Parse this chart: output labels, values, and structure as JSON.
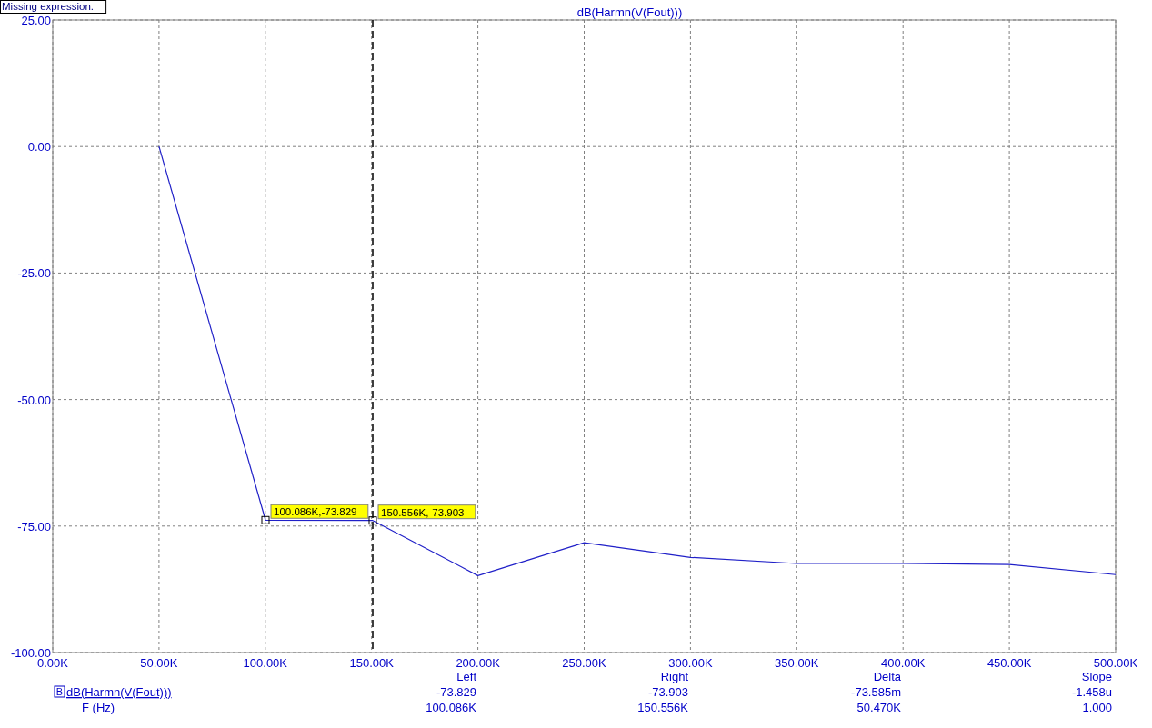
{
  "chart_data": {
    "type": "line",
    "title": "dB(Harmn(V(Fout)))",
    "x": [
      50000,
      100086,
      150556,
      200000,
      250000,
      300000,
      350000,
      400000,
      450000,
      500000
    ],
    "series": [
      {
        "color": "#2020c8",
        "values": [
          0,
          -73.829,
          -73.903,
          -84.8,
          -78.3,
          -81.2,
          -82.4,
          -82.4,
          -82.6,
          -84.6
        ]
      }
    ],
    "xlim": [
      0,
      500000
    ],
    "xticks": [
      {
        "value": 0,
        "label": "0.00K"
      },
      {
        "value": 50000,
        "label": "50.00K"
      },
      {
        "value": 100000,
        "label": "100.00K"
      },
      {
        "value": 150000,
        "label": "150.00K"
      },
      {
        "value": 200000,
        "label": "200.00K"
      },
      {
        "value": 250000,
        "label": "250.00K"
      },
      {
        "value": 300000,
        "label": "300.00K"
      },
      {
        "value": 350000,
        "label": "350.00K"
      },
      {
        "value": 400000,
        "label": "400.00K"
      },
      {
        "value": 450000,
        "label": "450.00K"
      },
      {
        "value": 500000,
        "label": "500.00K"
      }
    ],
    "ylim": [
      -100,
      25
    ],
    "yticks": [
      {
        "value": -100,
        "label": "-100.00"
      },
      {
        "value": -75,
        "label": "-75.00"
      },
      {
        "value": -50,
        "label": "-50.00"
      },
      {
        "value": -25,
        "label": "-25.00"
      },
      {
        "value": 0,
        "label": "0.00"
      },
      {
        "value": 25,
        "label": "25.00"
      }
    ],
    "grid": true,
    "ref_lines": [
      {
        "axis": "x",
        "value": 150556,
        "color": "#000000",
        "line_style": "dashed"
      }
    ],
    "annotations": [
      {
        "text": "100.086K,-73.829",
        "x": 100086,
        "y": -73.829
      },
      {
        "text": "150.556K,-73.903",
        "x": 150556,
        "y": -73.903
      },
      "Missing expression.",
      "Left",
      "Right",
      "Delta",
      "Slope",
      "B",
      "dB(Harmn(V(Fout)))",
      "-73.829",
      "-73.903",
      "-73.585m",
      "-1.458u",
      "F (Hz)",
      "100.086K",
      "150.556K",
      "50.470K",
      "1.000"
    ]
  }
}
